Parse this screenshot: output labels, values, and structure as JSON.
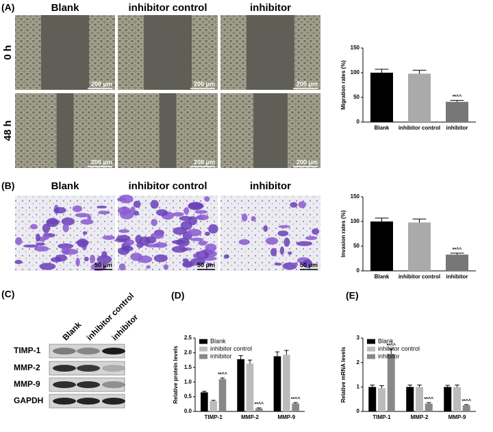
{
  "panels": {
    "A": {
      "label": "(A)",
      "columns": [
        "Blank",
        "inhibitor control",
        "inhibitor"
      ],
      "rows": [
        "0 h",
        "48 h"
      ],
      "scale": "200 μm"
    },
    "B": {
      "label": "(B)",
      "columns": [
        "Blank",
        "inhibitor control",
        "inhibitor"
      ],
      "scale": "50 μm"
    },
    "C": {
      "label": "(C)",
      "lanes": [
        "Blank",
        "inhibitor control",
        "inhibitor"
      ],
      "proteins": [
        "TIMP-1",
        "MMP-2",
        "MMP-9",
        "GAPDH"
      ]
    },
    "D": {
      "label": "(D)"
    },
    "E": {
      "label": "(E)"
    }
  },
  "chart_data": [
    {
      "type": "bar",
      "y_label": "Migration rates (%)",
      "categories": [
        "Blank",
        "inhibitor control",
        "inhibitor"
      ],
      "values": [
        100,
        98,
        41
      ],
      "errors": [
        7,
        7,
        3
      ],
      "colors": [
        "#000000",
        "#aaaaaa",
        "#777777"
      ],
      "annotations": [
        null,
        null,
        "**^^"
      ],
      "ylim": [
        0,
        150
      ],
      "yticks": [
        0,
        50,
        100,
        150
      ]
    },
    {
      "type": "bar",
      "y_label": "Invasion rates (%)",
      "categories": [
        "Blank",
        "inhibitor control",
        "inhibitor"
      ],
      "values": [
        100,
        98,
        33
      ],
      "errors": [
        7,
        7,
        3
      ],
      "colors": [
        "#000000",
        "#aaaaaa",
        "#777777"
      ],
      "annotations": [
        null,
        null,
        "**^^"
      ],
      "ylim": [
        0,
        150
      ],
      "yticks": [
        0,
        50,
        100,
        150
      ]
    },
    {
      "type": "grouped_bar",
      "y_label": "Relative protein levels",
      "categories": [
        "TIMP-1",
        "MMP-2",
        "MMP-9"
      ],
      "series": [
        {
          "name": "Blank",
          "color": "#000000",
          "values": [
            0.65,
            1.78,
            1.88
          ],
          "errors": [
            0.04,
            0.12,
            0.15
          ]
        },
        {
          "name": "inhibitor control",
          "color": "#bbbbbb",
          "values": [
            0.35,
            1.63,
            1.93
          ],
          "errors": [
            0.03,
            0.12,
            0.15
          ]
        },
        {
          "name": "inhibitor",
          "color": "#888888",
          "values": [
            1.1,
            0.1,
            0.27
          ],
          "errors": [
            0.04,
            0.02,
            0.03
          ],
          "annotations": [
            "**^^",
            "**^^",
            "**^^"
          ]
        }
      ],
      "ylim": [
        0,
        2.5
      ],
      "yticks": [
        {
          "value": 0,
          "label": "0.0"
        },
        0.5,
        {
          "value": 1,
          "label": "1.0"
        },
        1.5,
        {
          "value": 2,
          "label": "2.0"
        },
        2.5
      ],
      "legend": "upper left"
    },
    {
      "type": "grouped_bar",
      "y_label": "Relative mRNA levels",
      "categories": [
        "TIMP-1",
        "MMP-2",
        "MMP-9"
      ],
      "series": [
        {
          "name": "Blank",
          "color": "#000000",
          "values": [
            1,
            1,
            1
          ],
          "errors": [
            0.08,
            0.08,
            0.07
          ]
        },
        {
          "name": "inhibitor control",
          "color": "#bbbbbb",
          "values": [
            0.95,
            1,
            1
          ],
          "errors": [
            0.1,
            0.08,
            0.08
          ]
        },
        {
          "name": "inhibitor",
          "color": "#888888",
          "values": [
            2.35,
            0.32,
            0.25
          ],
          "errors": [
            0.2,
            0.04,
            0.03
          ],
          "annotations": [
            "**^^",
            "**^^",
            "**^^"
          ]
        }
      ],
      "ylim": [
        0,
        3
      ],
      "yticks": [
        0,
        1,
        2,
        3
      ],
      "legend": "upper left"
    }
  ]
}
